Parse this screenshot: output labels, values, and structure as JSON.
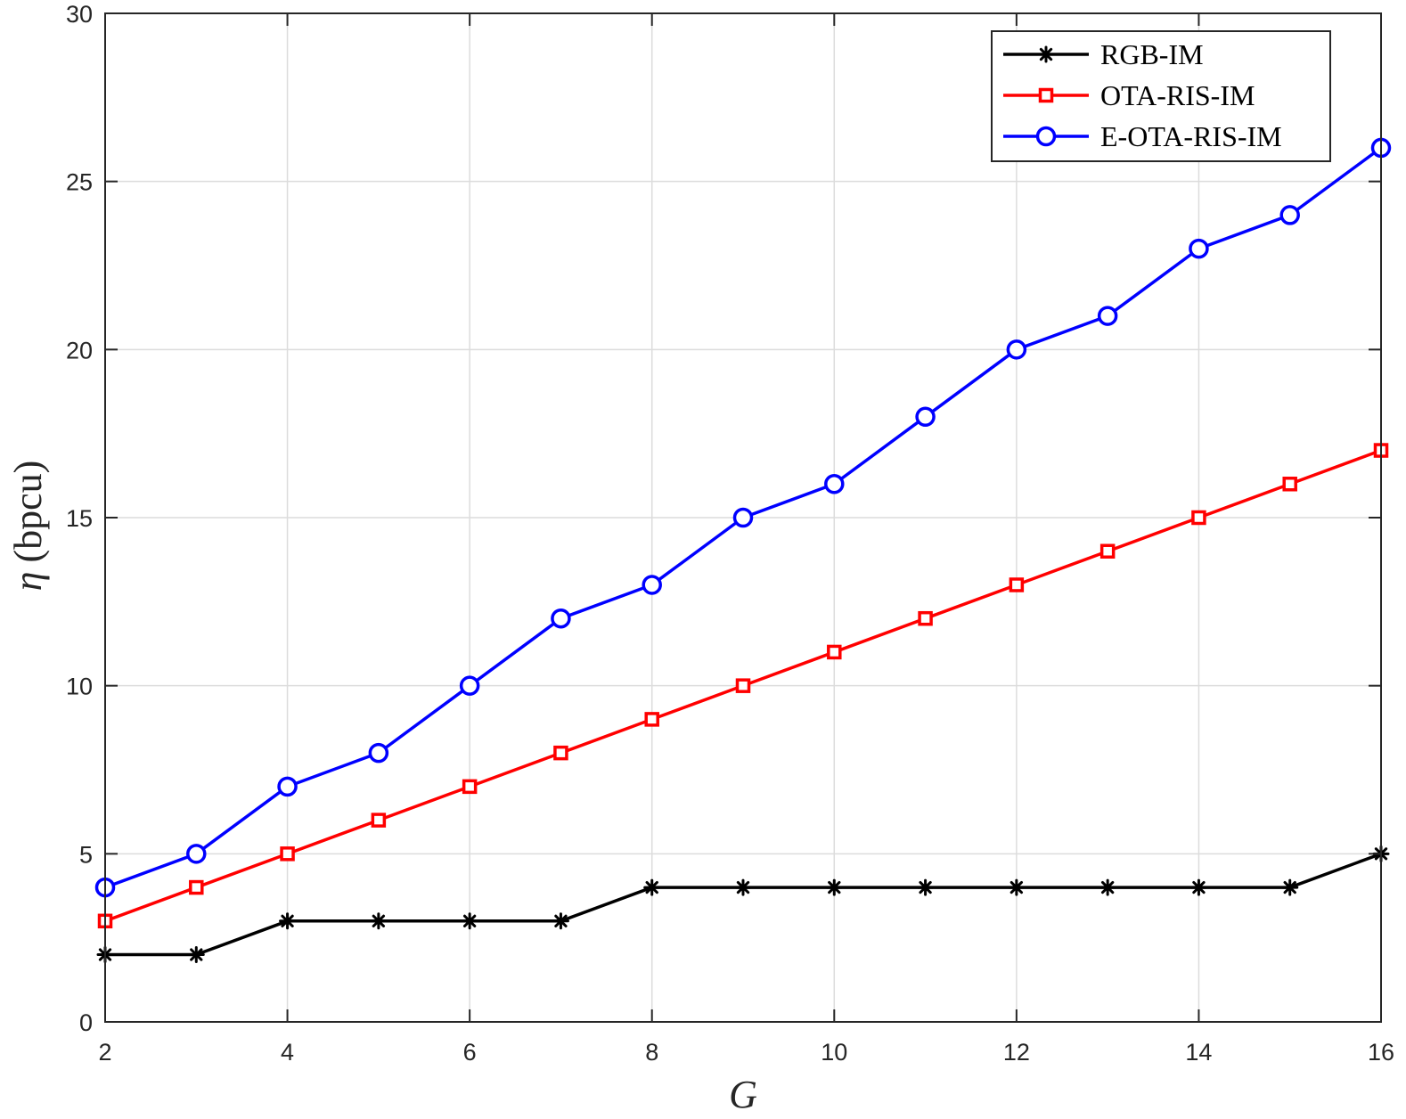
{
  "chart_data": {
    "type": "line",
    "xlabel": "G",
    "ylabel_symbol": "η",
    "ylabel_unit": "(bpcu)",
    "xlim": [
      2,
      16
    ],
    "ylim": [
      0,
      30
    ],
    "xticks": [
      2,
      4,
      6,
      8,
      10,
      12,
      14,
      16
    ],
    "yticks": [
      0,
      5,
      10,
      15,
      20,
      25,
      30
    ],
    "grid": true,
    "legend_position": "top-right",
    "x": [
      2,
      3,
      4,
      5,
      6,
      7,
      8,
      9,
      10,
      11,
      12,
      13,
      14,
      15,
      16
    ],
    "series": [
      {
        "name": "RGB-IM",
        "color": "#000000",
        "marker": "asterisk",
        "values": [
          2,
          2,
          3,
          3,
          3,
          3,
          4,
          4,
          4,
          4,
          4,
          4,
          4,
          4,
          5
        ]
      },
      {
        "name": "OTA-RIS-IM",
        "color": "#ff0000",
        "marker": "square",
        "values": [
          3,
          4,
          5,
          6,
          7,
          8,
          9,
          10,
          11,
          12,
          13,
          14,
          15,
          16,
          17
        ]
      },
      {
        "name": "E-OTA-RIS-IM",
        "color": "#0000ff",
        "marker": "circle",
        "values": [
          4,
          5,
          7,
          8,
          10,
          12,
          13,
          15,
          16,
          18,
          20,
          21,
          23,
          24,
          26
        ]
      }
    ]
  }
}
